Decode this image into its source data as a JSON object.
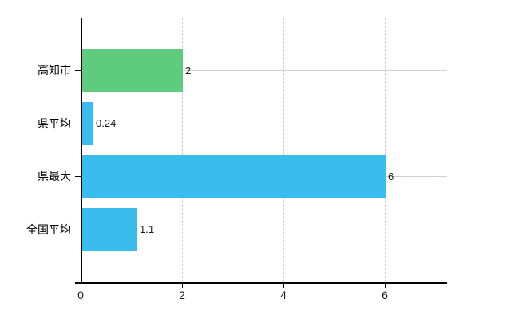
{
  "chart_data": {
    "type": "bar",
    "orientation": "horizontal",
    "title": "",
    "categories": [
      "高知市",
      "県平均",
      "県最大",
      "全国平均"
    ],
    "values": [
      2,
      0.24,
      6,
      1.1
    ],
    "value_labels": [
      "2",
      "0.24",
      "6",
      "1.1"
    ],
    "bar_colors": [
      "#5fcb7e",
      "#3bbcee",
      "#3bbcee",
      "#3bbcee"
    ],
    "x_tick_labels": [
      "0",
      "2",
      "4",
      "6"
    ],
    "x_tick_values": [
      0,
      2,
      4,
      6
    ],
    "xlim": [
      0,
      7.2
    ],
    "grid": true,
    "legend_position": "none"
  },
  "colors": {
    "background": "#ffffff",
    "axis": "#000000",
    "gridline_horizontal": "#ccd3cc",
    "gridline_vertical_dashed": "#cfcfcf",
    "top_border_dashed": "#c4c4c4",
    "category_label_text": "#000000",
    "value_label_text": "#1a1a1a",
    "green_bar": "#5fcb7e",
    "blue_bar": "#3bbcee"
  }
}
